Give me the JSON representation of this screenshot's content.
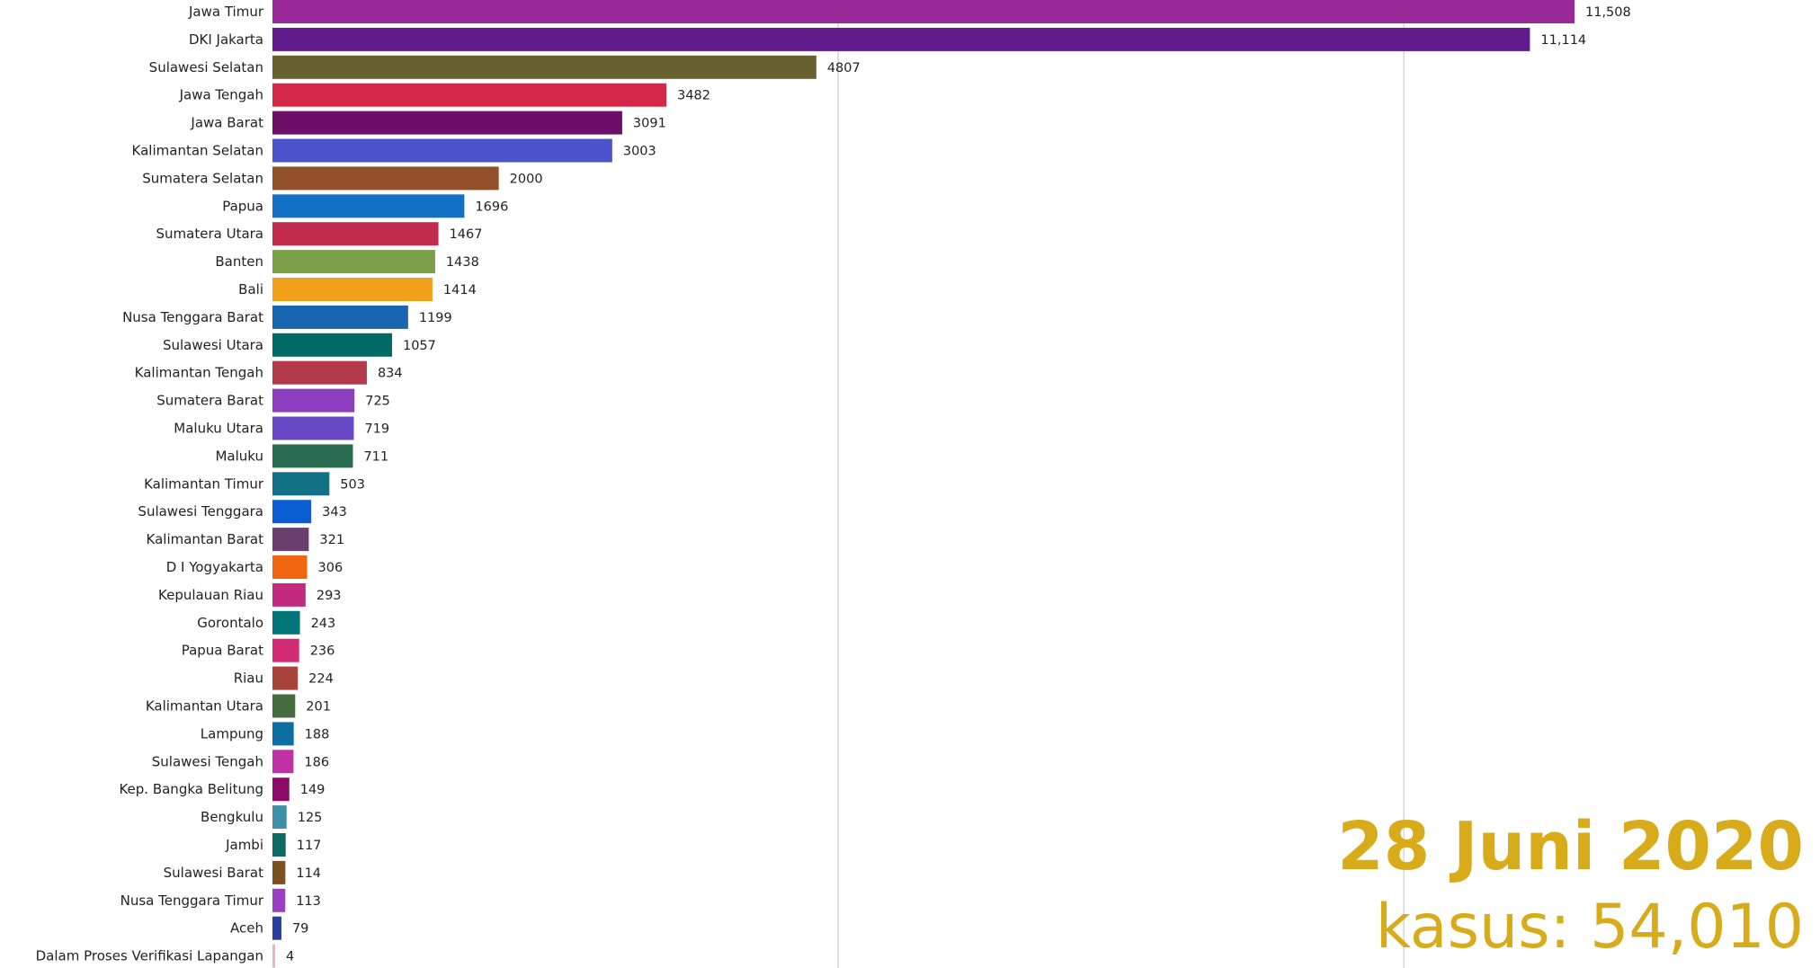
{
  "chart_data": {
    "type": "bar",
    "orientation": "horizontal",
    "categories": [
      "Jawa Timur",
      "DKI Jakarta",
      "Sulawesi Selatan",
      "Jawa Tengah",
      "Jawa Barat",
      "Kalimantan Selatan",
      "Sumatera Selatan",
      "Papua",
      "Sumatera Utara",
      "Banten",
      "Bali",
      "Nusa Tenggara Barat",
      "Sulawesi Utara",
      "Kalimantan Tengah",
      "Sumatera Barat",
      "Maluku Utara",
      "Maluku",
      "Kalimantan Timur",
      "Sulawesi Tenggara",
      "Kalimantan Barat",
      "D I Yogyakarta",
      "Kepulauan Riau",
      "Gorontalo",
      "Papua Barat",
      "Riau",
      "Kalimantan Utara",
      "Lampung",
      "Sulawesi Tengah",
      "Kep. Bangka Belitung",
      "Bengkulu",
      "Jambi",
      "Sulawesi Barat",
      "Nusa Tenggara Timur",
      "Aceh",
      "Dalam Proses Verifikasi Lapangan"
    ],
    "values": [
      11508,
      11114,
      4807,
      3482,
      3091,
      3003,
      2000,
      1696,
      1467,
      1438,
      1414,
      1199,
      1057,
      834,
      725,
      719,
      711,
      503,
      343,
      321,
      306,
      293,
      243,
      236,
      224,
      201,
      188,
      186,
      149,
      125,
      117,
      114,
      113,
      79,
      4
    ],
    "value_labels": [
      "11,508",
      "11,114",
      "4807",
      "3482",
      "3091",
      "3003",
      "2000",
      "1696",
      "1467",
      "1438",
      "1414",
      "1199",
      "1057",
      "834",
      "725",
      "719",
      "711",
      "503",
      "343",
      "321",
      "306",
      "293",
      "243",
      "236",
      "224",
      "201",
      "188",
      "186",
      "149",
      "125",
      "117",
      "114",
      "113",
      "79",
      "4"
    ],
    "colors": [
      "#9a2a9a",
      "#611a8c",
      "#67602f",
      "#d5274a",
      "#6d0f68",
      "#4b53cc",
      "#91502a",
      "#1270c5",
      "#c12b4e",
      "#7ca04a",
      "#f2a01a",
      "#1865b1",
      "#006a66",
      "#b23a4a",
      "#8c3dc0",
      "#6848c5",
      "#2a6c52",
      "#127184",
      "#0a5ed2",
      "#6a3f6e",
      "#ef6510",
      "#c22a7d",
      "#007478",
      "#d22b71",
      "#a8433b",
      "#456b3f",
      "#0b6fa1",
      "#c230a5",
      "#8d0a6a",
      "#3f90a6",
      "#0c6a62",
      "#7b5022",
      "#9b3ec4",
      "#2a3c9c",
      "#e7b6c4"
    ],
    "xlim": [
      0,
      11800
    ],
    "gridlines_at": [
      5000,
      10000
    ],
    "date": "28 Juni 2020",
    "total_label": "kasus: ",
    "total_value": "54,010"
  }
}
